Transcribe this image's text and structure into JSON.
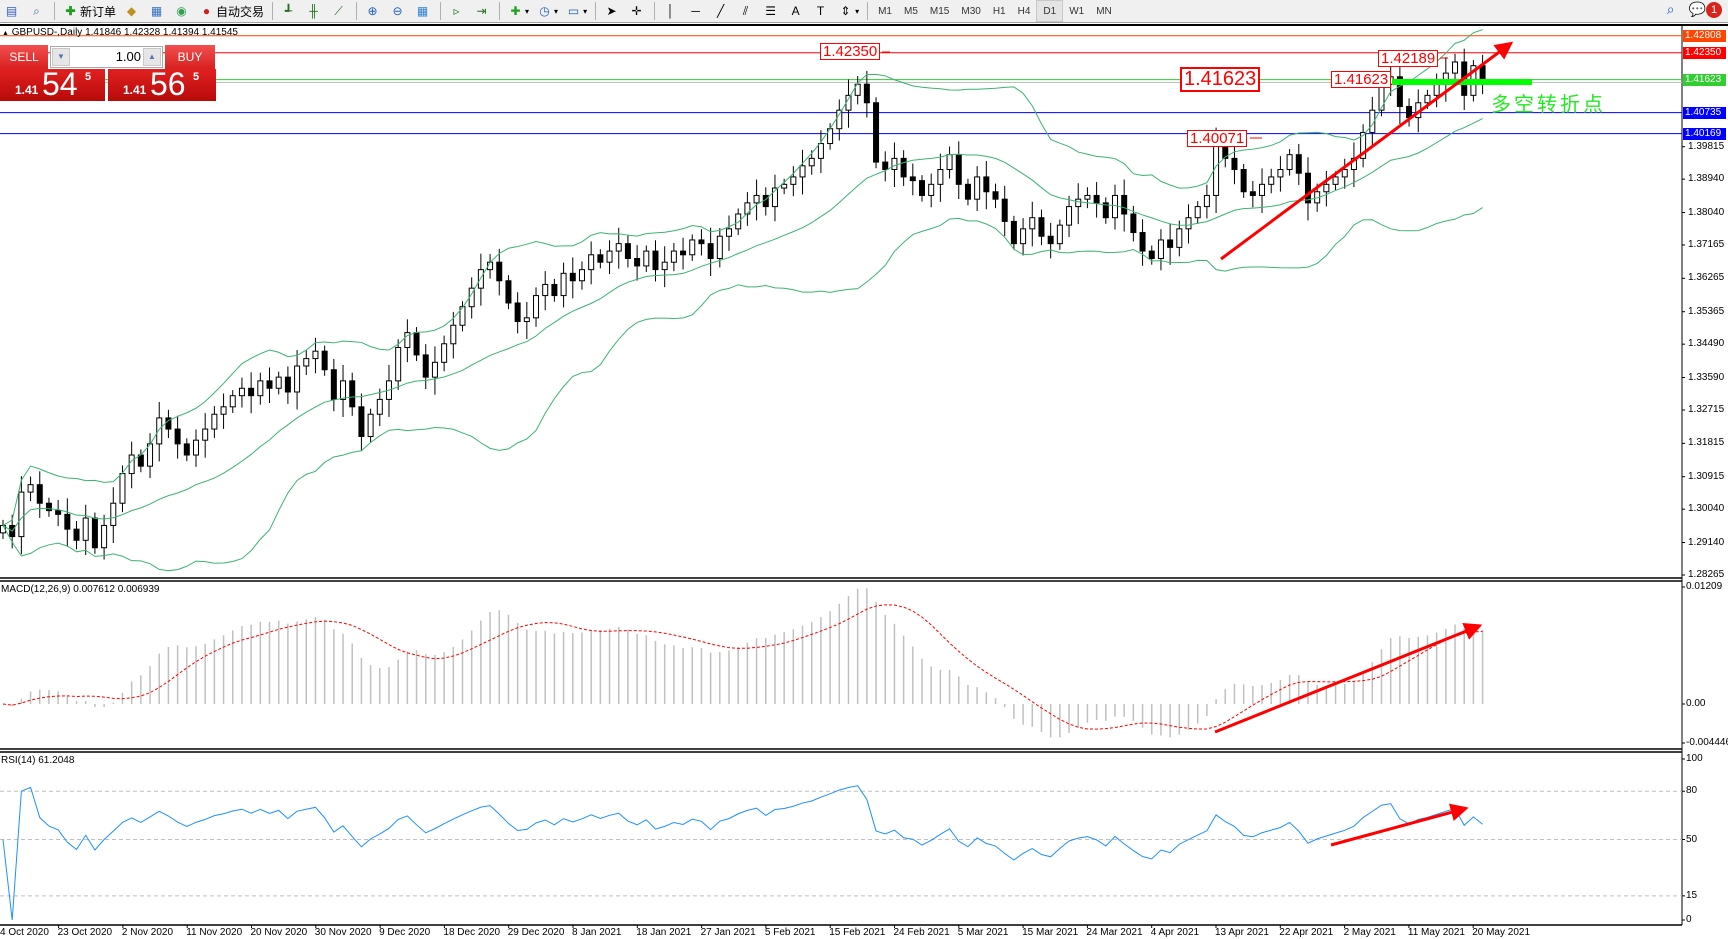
{
  "toolbar": {
    "new_order": "新订单",
    "auto_trading": "自动交易",
    "timeframes": [
      "M1",
      "M5",
      "M15",
      "M30",
      "H1",
      "H4",
      "D1",
      "W1",
      "MN"
    ],
    "active_timeframe": "D1",
    "notification_count": "1"
  },
  "header": {
    "symbol_line": "GBPUSD-,Daily  1.41846 1.42328 1.41394 1.41545"
  },
  "one_click": {
    "sell_label": "SELL",
    "buy_label": "BUY",
    "lot_value": "1.00",
    "sell_price": {
      "prefix": "1.41",
      "big": "54",
      "sup": "5"
    },
    "buy_price": {
      "prefix": "1.41",
      "big": "56",
      "sup": "5"
    }
  },
  "colors": {
    "bull_body": "#ffffff",
    "bear_body": "#000000",
    "bands": "#3cb371",
    "macd_hist": "#c0c0c0",
    "macd_signal": "#ff0000",
    "rsi_line": "#1e90ff",
    "annotation": "#ff0000",
    "note": "#22e822"
  },
  "price_axis": {
    "ticks": [
      "1.39815",
      "1.38940",
      "1.38040",
      "1.37165",
      "1.36265",
      "1.35365",
      "1.34490",
      "1.33590",
      "1.32715",
      "1.31815",
      "1.30915",
      "1.30040",
      "1.29140",
      "1.28265"
    ],
    "levels": [
      {
        "value": "1.42808",
        "color": "#ff4500"
      },
      {
        "value": "1.42350",
        "color": "#ff0000"
      },
      {
        "value": "1.41623",
        "color": "#32cd32"
      },
      {
        "value": "1.40735",
        "color": "#0000ff"
      },
      {
        "value": "1.40169",
        "color": "#0000ff"
      }
    ],
    "bid": {
      "value": "1.41545",
      "color": "#000000"
    }
  },
  "annotations": {
    "high_1": "1.42350",
    "level_big": "1.41623",
    "level_small": "1.41623",
    "high_2": "1.42189",
    "breakout": "1.40071",
    "note": "多空转折点"
  },
  "macd": {
    "label": "MACD(12,26,9) 0.007612 0.006939",
    "ticks": [
      "0.01209",
      "0.00",
      "-0.004446"
    ],
    "range": [
      -0.004446,
      0.01209
    ]
  },
  "rsi": {
    "label": "RSI(14) 61.2048",
    "ticks": [
      "100",
      "80",
      "50",
      "15",
      "0"
    ],
    "levels": [
      80,
      50,
      15
    ]
  },
  "date_axis": [
    "4 Oct 2020",
    "23 Oct 2020",
    "2 Nov 2020",
    "11 Nov 2020",
    "20 Nov 2020",
    "30 Nov 2020",
    "9 Dec 2020",
    "18 Dec 2020",
    "29 Dec 2020",
    "8 Jan 2021",
    "18 Jan 2021",
    "27 Jan 2021",
    "5 Feb 2021",
    "15 Feb 2021",
    "24 Feb 2021",
    "5 Mar 2021",
    "15 Mar 2021",
    "24 Mar 2021",
    "4 Apr 2021",
    "13 Apr 2021",
    "22 Apr 2021",
    "2 May 2021",
    "11 May 2021",
    "20 May 2021"
  ],
  "chart_data": {
    "type": "candlestick",
    "symbol": "GBPUSD-",
    "timeframe": "Daily",
    "ylim": [
      1.28265,
      1.42808
    ],
    "indicators": [
      "Bollinger Bands",
      "MACD(12,26,9)",
      "RSI(14)"
    ],
    "close": [
      1.296,
      1.293,
      1.305,
      1.307,
      1.302,
      1.3,
      1.299,
      1.295,
      1.292,
      1.298,
      1.29,
      1.296,
      1.302,
      1.31,
      1.315,
      1.312,
      1.318,
      1.325,
      1.322,
      1.318,
      1.315,
      1.319,
      1.322,
      1.326,
      1.328,
      1.331,
      1.333,
      1.331,
      1.335,
      1.333,
      1.336,
      1.332,
      1.339,
      1.341,
      1.343,
      1.338,
      1.33,
      1.335,
      1.328,
      1.32,
      1.326,
      1.33,
      1.335,
      1.344,
      1.348,
      1.342,
      1.336,
      1.34,
      1.345,
      1.35,
      1.355,
      1.36,
      1.365,
      1.367,
      1.362,
      1.356,
      1.351,
      1.352,
      1.358,
      1.361,
      1.358,
      1.364,
      1.362,
      1.365,
      1.369,
      1.367,
      1.37,
      1.372,
      1.368,
      1.366,
      1.37,
      1.365,
      1.367,
      1.37,
      1.369,
      1.373,
      1.372,
      1.368,
      1.374,
      1.376,
      1.38,
      1.383,
      1.385,
      1.382,
      1.387,
      1.388,
      1.39,
      1.393,
      1.395,
      1.399,
      1.403,
      1.408,
      1.412,
      1.415,
      1.41,
      1.394,
      1.392,
      1.395,
      1.39,
      1.389,
      1.385,
      1.388,
      1.392,
      1.396,
      1.388,
      1.384,
      1.39,
      1.386,
      1.384,
      1.378,
      1.372,
      1.376,
      1.379,
      1.374,
      1.372,
      1.377,
      1.382,
      1.384,
      1.385,
      1.383,
      1.379,
      1.385,
      1.38,
      1.375,
      1.37,
      1.368,
      1.373,
      1.371,
      1.376,
      1.379,
      1.382,
      1.385,
      1.399,
      1.395,
      1.392,
      1.386,
      1.385,
      1.388,
      1.39,
      1.392,
      1.396,
      1.391,
      1.383,
      1.386,
      1.388,
      1.39,
      1.392,
      1.395,
      1.402,
      1.408,
      1.415,
      1.417,
      1.409,
      1.406,
      1.41,
      1.412,
      1.415,
      1.418,
      1.421,
      1.412,
      1.42,
      1.4155
    ]
  }
}
